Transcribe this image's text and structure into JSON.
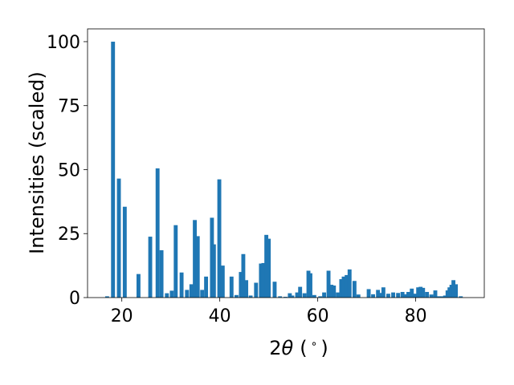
{
  "chart_data": {
    "type": "bar",
    "title": "",
    "xlabel": "2θ (°)",
    "xlabel_parts": {
      "prefix": "2",
      "symbol": "θ",
      "unit": "(",
      "degree": "∘",
      "close": ")"
    },
    "ylabel": "Intensities (scaled)",
    "xlim": [
      13,
      94
    ],
    "ylim": [
      0,
      105
    ],
    "xticks": [
      20,
      40,
      60,
      80
    ],
    "yticks": [
      0,
      25,
      50,
      75,
      100
    ],
    "bar_color": "#1f77b4",
    "bar_width": 0.8,
    "grid": false,
    "x": [
      17.0,
      18.2,
      19.4,
      20.6,
      23.4,
      25.8,
      27.3,
      28.1,
      29.2,
      30.2,
      31.0,
      32.2,
      33.3,
      34.2,
      34.9,
      35.5,
      36.4,
      37.2,
      38.4,
      38.8,
      39.9,
      40.6,
      42.4,
      43.4,
      44.3,
      44.8,
      45.4,
      46.3,
      47.4,
      48.4,
      48.9,
      49.5,
      50.0,
      51.2,
      52.3,
      53.4,
      54.3,
      54.8,
      55.8,
      56.4,
      57.3,
      58.1,
      58.5,
      59.3,
      60.5,
      61.3,
      62.2,
      62.8,
      63.3,
      64.1,
      64.8,
      65.3,
      65.9,
      66.5,
      67.5,
      68.3,
      70.4,
      71.3,
      72.3,
      72.8,
      73.4,
      74.4,
      75.4,
      76.4,
      77.3,
      77.9,
      78.5,
      79.2,
      79.9,
      80.5,
      81.0,
      81.5,
      82.3,
      83.2,
      84.0,
      84.7,
      85.4,
      86.0,
      86.5,
      86.9,
      87.3,
      87.7,
      88.2,
      89.2
    ],
    "values": [
      0.5,
      100,
      46.5,
      35.5,
      9.2,
      23.8,
      50.5,
      18.5,
      1.7,
      2.7,
      28.3,
      9.8,
      3.0,
      5.2,
      30.3,
      24.0,
      3.0,
      8.2,
      31.2,
      20.8,
      46.2,
      12.5,
      8.2,
      1.0,
      10.0,
      17.0,
      6.8,
      0.8,
      5.8,
      13.3,
      13.5,
      24.5,
      23.0,
      6.2,
      0.5,
      0.3,
      1.7,
      0.8,
      2.0,
      4.2,
      1.7,
      10.5,
      9.5,
      1.0,
      0.5,
      2.0,
      10.5,
      5.0,
      4.7,
      2.0,
      7.2,
      8.2,
      8.8,
      11.0,
      6.5,
      1.2,
      3.3,
      1.3,
      3.0,
      1.8,
      4.0,
      1.5,
      2.0,
      1.8,
      2.2,
      1.3,
      2.2,
      3.5,
      1.5,
      4.0,
      4.2,
      3.8,
      2.2,
      1.2,
      2.8,
      0.5,
      0.5,
      0.8,
      2.8,
      4.0,
      5.0,
      6.8,
      5.2,
      0.5
    ]
  }
}
